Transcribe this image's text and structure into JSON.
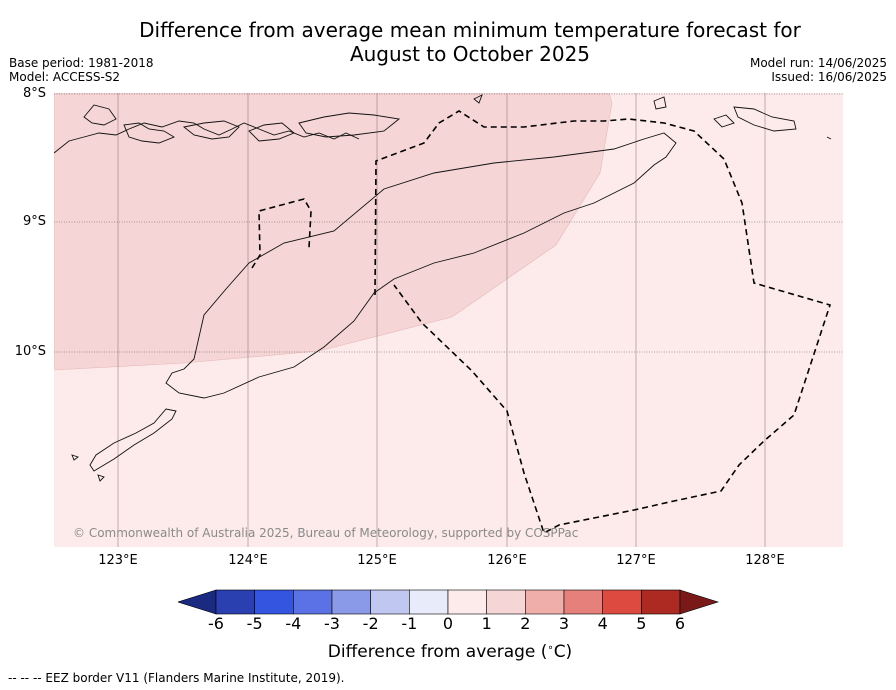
{
  "title_line1": "Difference from average mean minimum temperature forecast for",
  "title_line2": "August to October 2025",
  "meta_left": {
    "base_period": "Base period: 1981-2018",
    "model": "Model: ACCESS-S2"
  },
  "meta_right": {
    "model_run": "Model run: 14/06/2025",
    "issued": "Issued: 16/06/2025"
  },
  "lat_labels": [
    "8°S",
    "9°S",
    "10°S"
  ],
  "lon_labels": [
    "123°E",
    "124°E",
    "125°E",
    "126°E",
    "127°E",
    "128°E"
  ],
  "copyright": "© Commonwealth of Australia 2025, Bureau of Meteorology, supported by COSPPac",
  "colorbar": {
    "ticks": [
      "-6",
      "-5",
      "-4",
      "-3",
      "-2",
      "-1",
      "0",
      "1",
      "2",
      "3",
      "4",
      "5",
      "6"
    ],
    "label": "Difference from average (",
    "label_unit": "C)",
    "colors": [
      "#2a3fb0",
      "#3455e0",
      "#5a72e6",
      "#8a9ae8",
      "#c0c8f2",
      "#e8ebfa",
      "#fcebea",
      "#f5d5d5",
      "#efaeaa",
      "#e5807a",
      "#dc4a40",
      "#ad2a22"
    ],
    "under_color": "#1a2a80",
    "over_color": "#7a1a18"
  },
  "map_colors": {
    "anomaly_0_1": "#fcebea",
    "anomaly_1_2": "#f5d5d5"
  },
  "footer": "--  --  -- EEZ border V11 (Flanders Marine Institute, 2019)."
}
